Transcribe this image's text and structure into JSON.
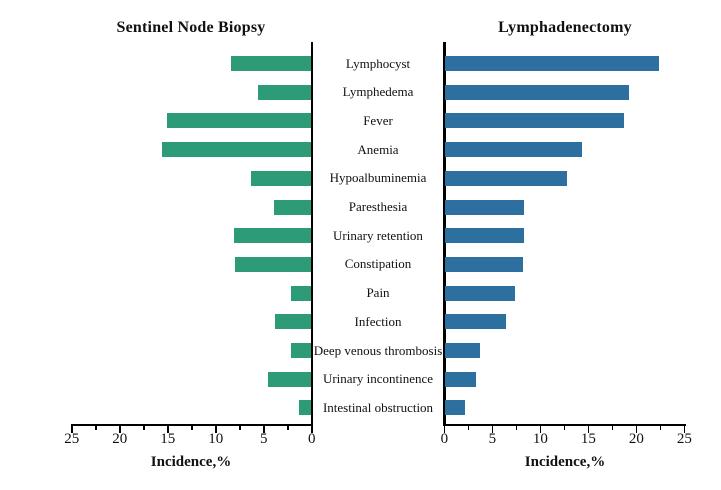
{
  "colors": {
    "left_bar": "#2D9A78",
    "right_bar": "#2D6F9E",
    "axis": "#000000",
    "background": "#FFFFFF"
  },
  "chart_data": {
    "type": "bar",
    "orientation": "horizontal",
    "layout": "butterfly",
    "left_title": "Sentinel Node Biopsy",
    "right_title": "Lymphadenectomy",
    "xlabel": "Incidence,%",
    "xlim": [
      0,
      25
    ],
    "x_major_ticks": [
      0,
      5,
      10,
      15,
      20,
      25
    ],
    "x_minor_ticks": [
      2.5,
      7.5,
      12.5,
      17.5,
      22.5
    ],
    "grid": false,
    "categories": [
      "Lymphocyst",
      "Lymphedema",
      "Fever",
      "Anemia",
      "Hypoalbuminemia",
      "Paresthesia",
      "Urinary retention",
      "Constipation",
      "Pain",
      "Infection",
      "Deep venous thrombosis",
      "Urinary incontinence",
      "Intestinal obstruction"
    ],
    "series": [
      {
        "name": "Sentinel Node Biopsy",
        "direction": "left",
        "color": "#2D9A78",
        "values": [
          8.3,
          5.5,
          15.0,
          15.5,
          6.3,
          3.9,
          8.0,
          7.9,
          2.1,
          3.8,
          2.1,
          4.5,
          1.3
        ]
      },
      {
        "name": "Lymphadenectomy",
        "direction": "right",
        "color": "#2D6F9E",
        "values": [
          22.3,
          19.2,
          18.7,
          14.3,
          12.7,
          8.3,
          8.3,
          8.1,
          7.3,
          6.4,
          3.7,
          3.2,
          2.1
        ]
      }
    ]
  }
}
